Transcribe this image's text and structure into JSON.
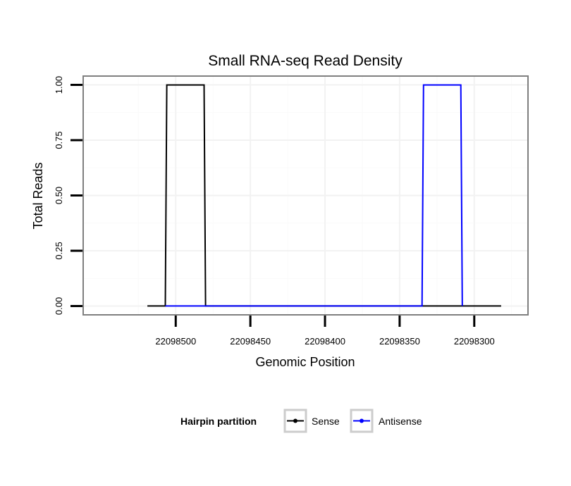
{
  "chart_data": {
    "type": "line",
    "title": "Small RNA-seq Read Density",
    "xlabel": "Genomic Position",
    "ylabel": "Total Reads",
    "x_reversed": true,
    "xlim": [
      22098562,
      22098264
    ],
    "ylim": [
      -0.04,
      1.04
    ],
    "x_ticks": [
      22098500,
      22098450,
      22098400,
      22098350,
      22098300
    ],
    "x_tick_labels": [
      "22098500",
      "22098450",
      "22098400",
      "22098350",
      "22098300"
    ],
    "y_ticks": [
      0,
      0.25,
      0.5,
      0.75,
      1
    ],
    "y_tick_labels": [
      "0.00",
      "0.25",
      "0.50",
      "0.75",
      "1.00"
    ],
    "grid": true,
    "legend": {
      "title": "Hairpin partition",
      "position": "bottom"
    },
    "series": [
      {
        "name": "Sense",
        "color": "#000000",
        "x": [
          22098519,
          22098507,
          22098506,
          22098481,
          22098480,
          22098282
        ],
        "y": [
          0,
          0,
          1,
          1,
          0,
          0
        ]
      },
      {
        "name": "Antisense",
        "color": "#0000ff",
        "x": [
          22098507,
          22098480,
          22098335,
          22098334,
          22098309,
          22098308
        ],
        "y": [
          0,
          0,
          0,
          1,
          1,
          0
        ]
      }
    ]
  }
}
